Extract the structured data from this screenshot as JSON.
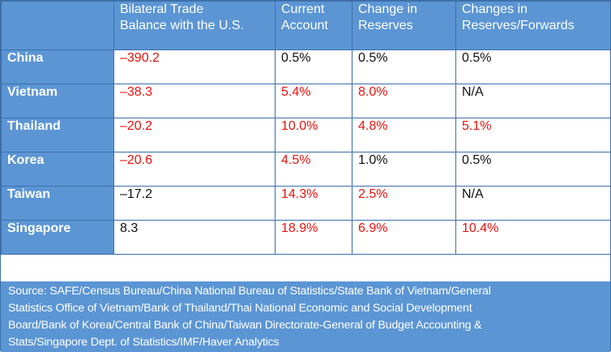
{
  "table": {
    "headers": [
      "",
      "Bilateral Trade\nBalance with the U.S.",
      "Current\nAccount",
      "Change in\nReserves",
      "Changes in\nReserves/Forwards"
    ],
    "header_lines": [
      [
        "",
        ""
      ],
      [
        "Bilateral Trade",
        "Balance with the U.S."
      ],
      [
        "Current",
        "Account"
      ],
      [
        "Change in",
        "Reserves"
      ],
      [
        "Changes in",
        "Reserves/Forwards"
      ]
    ],
    "rows": [
      {
        "country": "China",
        "cells": [
          {
            "v": "–390.2",
            "red": true
          },
          {
            "v": "0.5%",
            "red": false
          },
          {
            "v": "0.5%",
            "red": false
          },
          {
            "v": "0.5%",
            "red": false
          }
        ]
      },
      {
        "country": "Vietnam",
        "cells": [
          {
            "v": "–38.3",
            "red": true
          },
          {
            "v": "5.4%",
            "red": true
          },
          {
            "v": "8.0%",
            "red": true
          },
          {
            "v": "N/A",
            "red": false
          }
        ]
      },
      {
        "country": "Thailand",
        "cells": [
          {
            "v": "–20.2",
            "red": true
          },
          {
            "v": "10.0%",
            "red": true
          },
          {
            "v": "4.8%",
            "red": true
          },
          {
            "v": "5.1%",
            "red": true
          }
        ]
      },
      {
        "country": "Korea",
        "cells": [
          {
            "v": "–20.6",
            "red": true
          },
          {
            "v": "4.5%",
            "red": true
          },
          {
            "v": "1.0%",
            "red": false
          },
          {
            "v": "0.5%",
            "red": false
          }
        ]
      },
      {
        "country": "Taiwan",
        "cells": [
          {
            "v": "–17.2",
            "red": false
          },
          {
            "v": "14.3%",
            "red": true
          },
          {
            "v": "2.5%",
            "red": true
          },
          {
            "v": "N/A",
            "red": false
          }
        ]
      },
      {
        "country": "Singapore",
        "cells": [
          {
            "v": "8.3",
            "red": false
          },
          {
            "v": "18.9%",
            "red": true
          },
          {
            "v": "6.9%",
            "red": true
          },
          {
            "v": "10.4%",
            "red": true
          }
        ]
      }
    ]
  },
  "source_lines": [
    "Source: SAFE/Census Bureau/China National Bureau of Statistics/State Bank of Vietnam/General",
    "Statistics Office of Vietnam/Bank of Thailand/Thai National Economic and Social Development",
    "Board/Bank of Korea/Central Bank of China/Taiwan Directorate-General of Budget Accounting &",
    "Stats/Singapore Dept. of Statistics/IMF/Haver Analytics"
  ],
  "colors": {
    "header_bg": "#5b95d4",
    "border": "#3d6fa8",
    "highlight_red": "#e8120f",
    "text_default": "#111111"
  }
}
